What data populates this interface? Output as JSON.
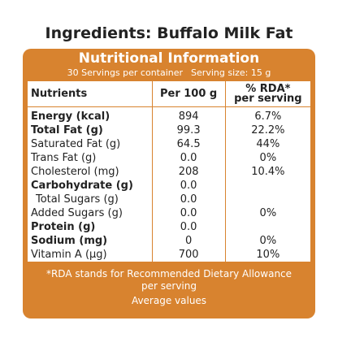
{
  "header": {
    "title": "Ingredients: Buffalo Milk Fat"
  },
  "panel": {
    "title": "Nutritional Information",
    "servings": "30 Servings per container",
    "serving_size": "Serving size: 15 g",
    "color": "#d8832f"
  },
  "table": {
    "columns": [
      "Nutrients",
      "Per 100 g",
      "% RDA*",
      "per serving"
    ],
    "rows": [
      {
        "cells": [
          "Energy (kcal)",
          "894",
          "6.7%"
        ],
        "bold": true
      },
      {
        "cells": [
          "Total Fat (g)",
          "99.3",
          "22.2%"
        ],
        "bold": true
      },
      {
        "cells": [
          "Saturated Fat (g)",
          "64.5",
          "44%"
        ],
        "bold": false
      },
      {
        "cells": [
          "Trans Fat (g)",
          "0.0",
          "0%"
        ],
        "bold": false
      },
      {
        "cells": [
          "Cholesterol (mg)",
          "208",
          "10.4%"
        ],
        "bold": false
      },
      {
        "cells": [
          "Carbohydrate (g)",
          "0.0",
          null
        ],
        "bold": true
      },
      {
        "cells": [
          "Total Sugars (g)",
          "0.0",
          null
        ],
        "bold": false,
        "indent": true
      },
      {
        "cells": [
          "Added Sugars (g)",
          "0.0",
          "0%"
        ],
        "bold": false
      },
      {
        "cells": [
          "Protein (g)",
          "0.0",
          null
        ],
        "bold": true
      },
      {
        "cells": [
          "Sodium (mg)",
          "0",
          "0%"
        ],
        "bold": true
      },
      {
        "cells": [
          "Vitamin A (µg)",
          "700",
          "10%"
        ],
        "bold": false
      }
    ]
  },
  "footer": {
    "note_line1": "*RDA stands for Recommended Dietary Allowance",
    "note_line2": "per serving",
    "average": "Average values"
  }
}
